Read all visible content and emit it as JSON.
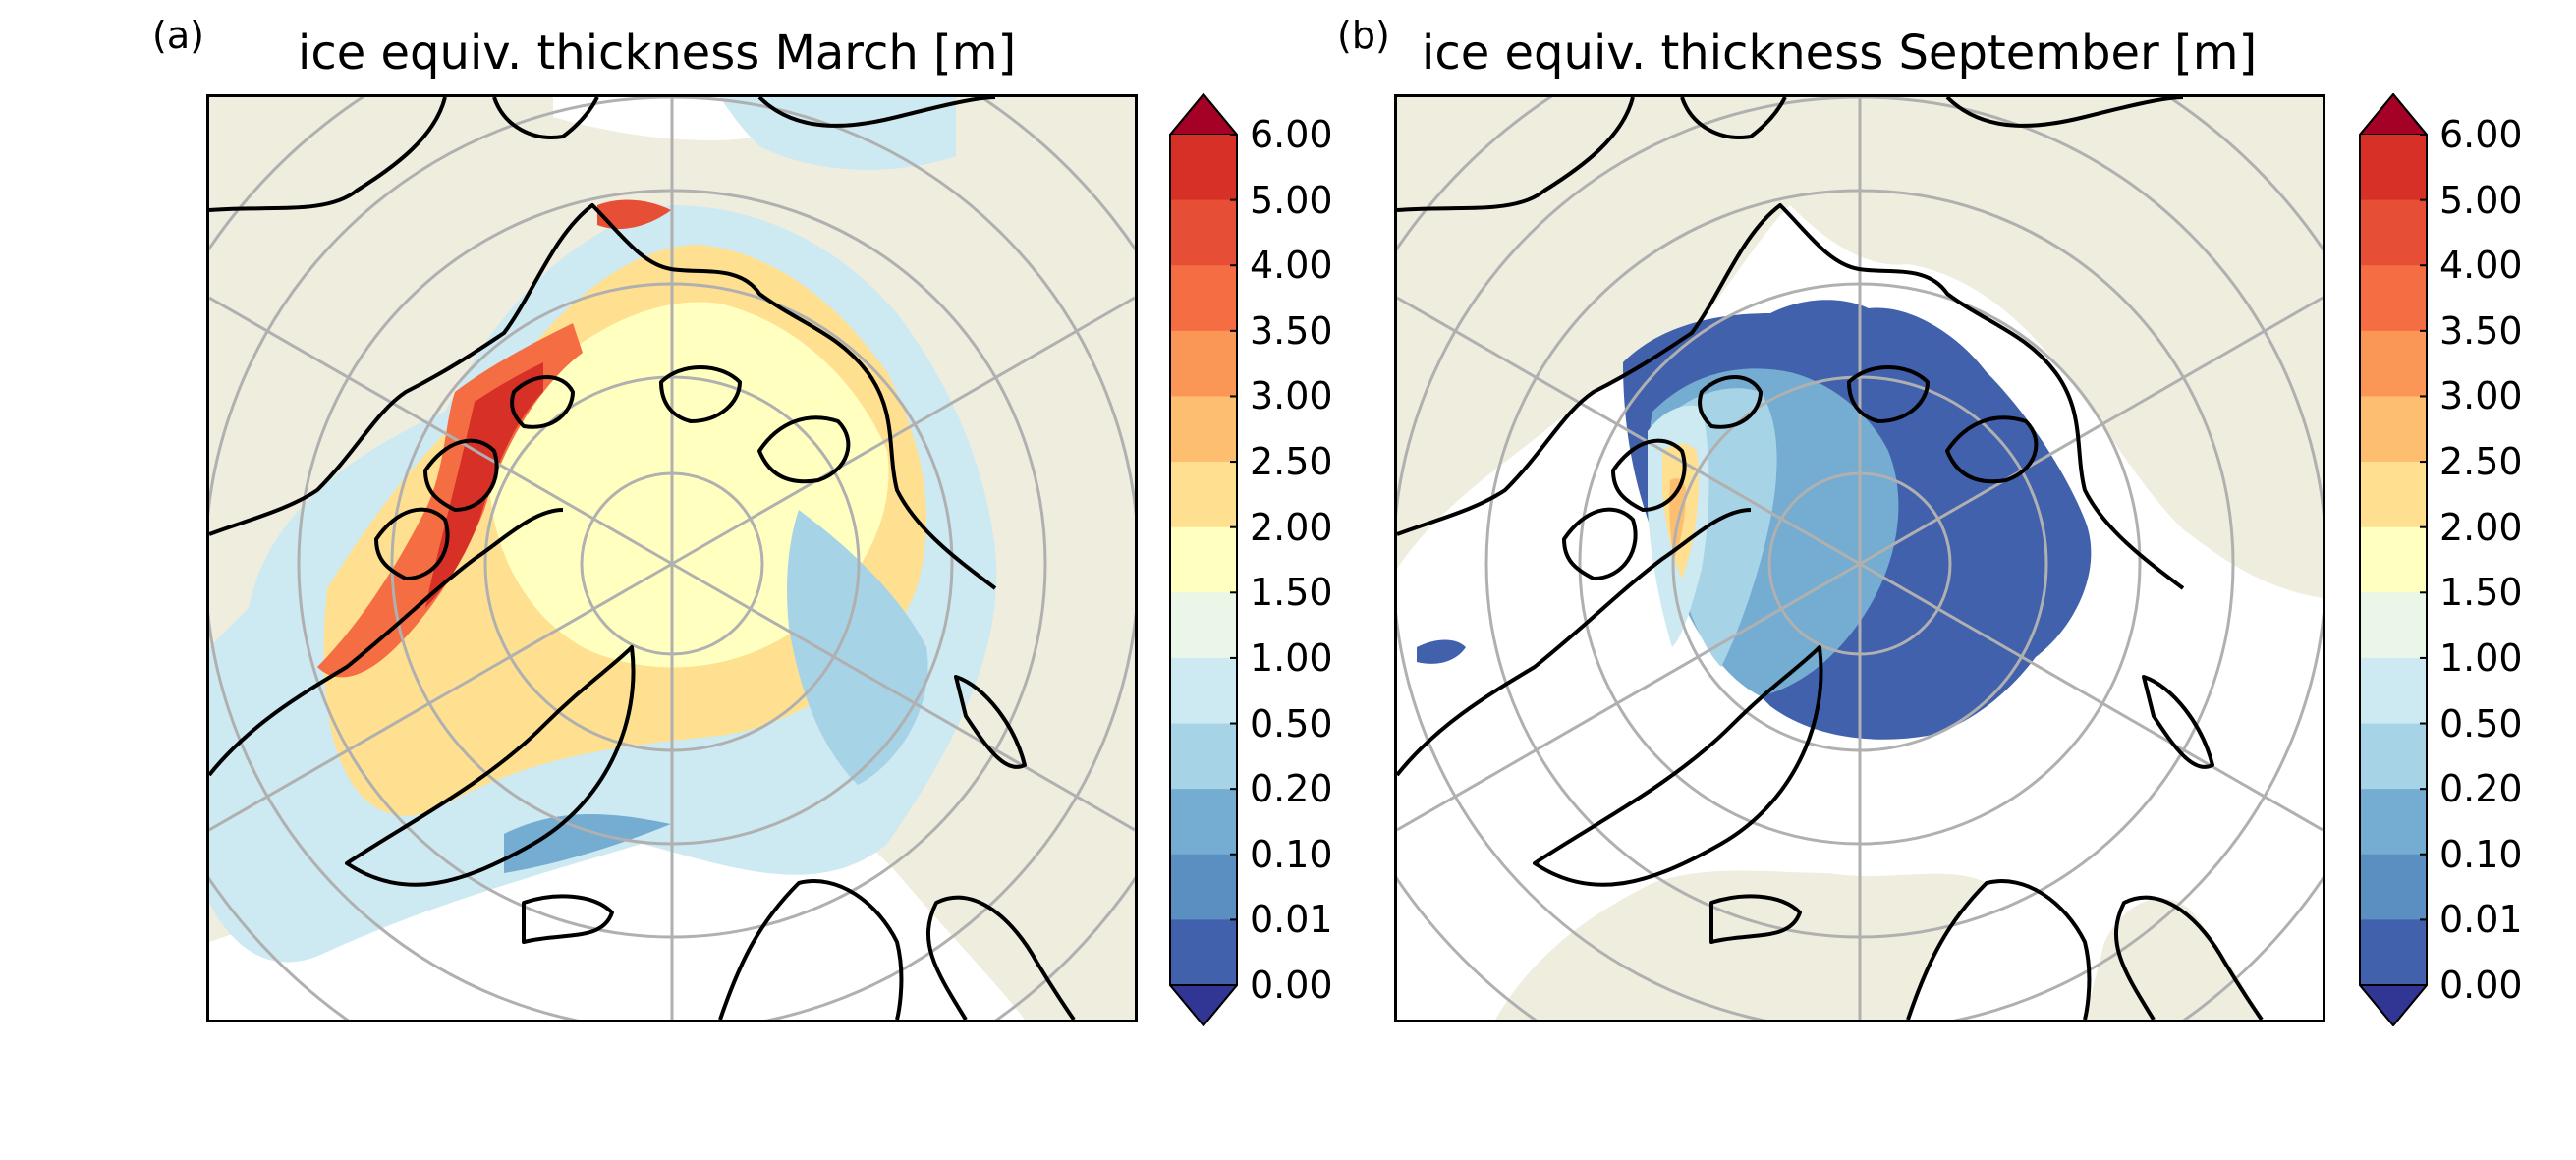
{
  "panels": [
    {
      "letter": "(a)",
      "title": "ice equiv. thickness March [m]"
    },
    {
      "letter": "(b)",
      "title": "ice equiv. thickness September [m]"
    }
  ],
  "colorbar": {
    "levels": [
      "6.00",
      "5.00",
      "4.00",
      "3.50",
      "3.00",
      "2.50",
      "2.00",
      "1.50",
      "1.00",
      "0.50",
      "0.20",
      "0.10",
      "0.01",
      "0.00"
    ],
    "colors": [
      "#a50026",
      "#d73027",
      "#e64f35",
      "#f46d43",
      "#fa9656",
      "#fdbe70",
      "#fee090",
      "#ffffbf",
      "#e9f6e8",
      "#cde9f2",
      "#a7d3e6",
      "#74add1",
      "#5b8fc2",
      "#4261ad",
      "#313695"
    ],
    "extend": "both"
  },
  "map_colors": {
    "land": "#efedde",
    "ocean": "#ffffff",
    "coast": "#000000",
    "grid": "#b0b0b0"
  }
}
